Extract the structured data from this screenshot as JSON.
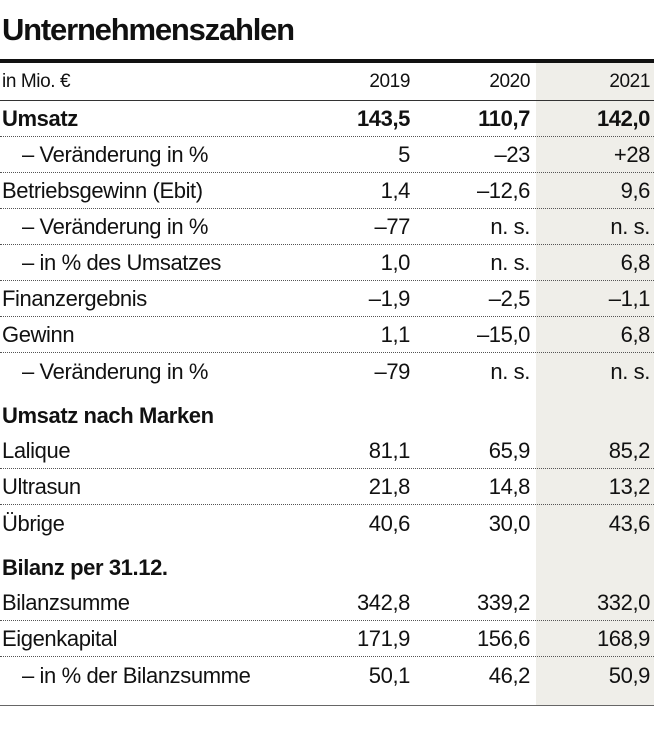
{
  "title": "Unternehmenszahlen",
  "header": {
    "unit": "in Mio. €",
    "years": [
      "2019",
      "2020",
      "2021"
    ]
  },
  "rows": [
    {
      "label": "Umsatz",
      "values": [
        "143,5",
        "110,7",
        "142,0"
      ]
    },
    {
      "label": "– Veränderung in %",
      "values": [
        "5",
        "–23",
        "+28"
      ]
    },
    {
      "label": "Betriebsgewinn (Ebit)",
      "values": [
        "1,4",
        "–12,6",
        "9,6"
      ]
    },
    {
      "label": "– Veränderung in %",
      "values": [
        "–77",
        "n. s.",
        "n. s."
      ]
    },
    {
      "label": "– in % des Umsatzes",
      "values": [
        "1,0",
        "n. s.",
        "6,8"
      ]
    },
    {
      "label": "Finanzergebnis",
      "values": [
        "–1,9",
        "–2,5",
        "–1,1"
      ]
    },
    {
      "label": "Gewinn",
      "values": [
        "1,1",
        "–15,0",
        "6,8"
      ]
    },
    {
      "label": "– Veränderung in %",
      "values": [
        "–79",
        "n. s.",
        "n. s."
      ]
    },
    {
      "label": "Umsatz nach Marken"
    },
    {
      "label": "Lalique",
      "values": [
        "81,1",
        "65,9",
        "85,2"
      ]
    },
    {
      "label": "Ultrasun",
      "values": [
        "21,8",
        "14,8",
        "13,2"
      ]
    },
    {
      "label": "Übrige",
      "values": [
        "40,6",
        "30,0",
        "43,6"
      ]
    },
    {
      "label": "Bilanz per 31.12."
    },
    {
      "label": "Bilanzsumme",
      "values": [
        "342,8",
        "339,2",
        "332,0"
      ]
    },
    {
      "label": "Eigenkapital",
      "values": [
        "171,9",
        "156,6",
        "168,9"
      ]
    },
    {
      "label": "– in % der Bilanzsumme",
      "values": [
        "50,1",
        "46,2",
        "50,9"
      ]
    }
  ]
}
